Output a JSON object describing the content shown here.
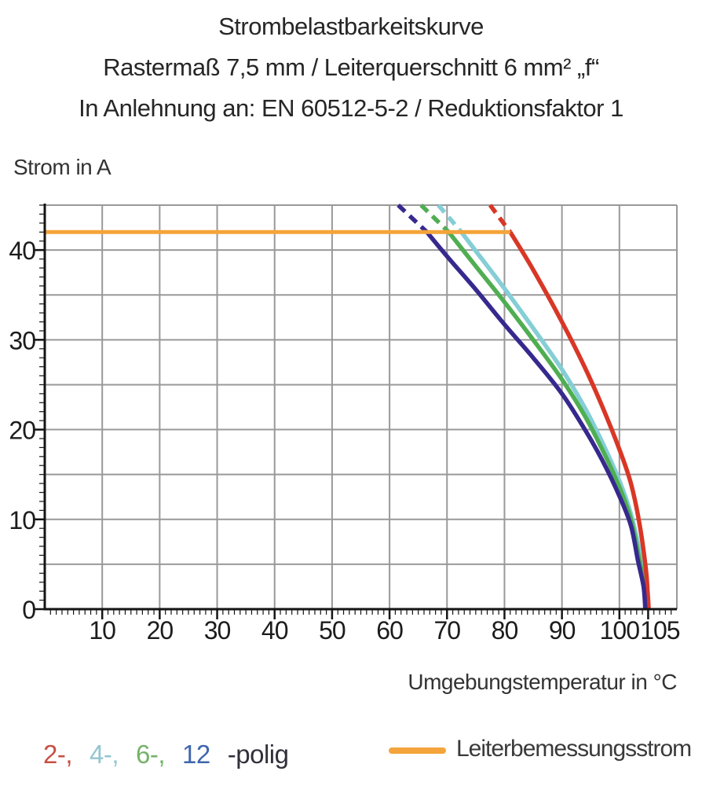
{
  "title": {
    "line1": "Strombelastbarkeitskurve",
    "line2": "Rastermaß 7,5 mm / Leiterquerschnitt 6 mm² „f“",
    "line3": "In Anlehnung an: EN 60512-5-2 / Reduktionsfaktor 1"
  },
  "chart_data": {
    "type": "line",
    "title": "Strombelastbarkeitskurve",
    "xlabel": "Umgebungstemperatur in °C",
    "ylabel": "Strom in A",
    "xlim": [
      0,
      110
    ],
    "ylim": [
      0,
      45
    ],
    "x_ticks_major": [
      10,
      20,
      30,
      40,
      50,
      60,
      70,
      80,
      90,
      100,
      105
    ],
    "x_tick_minor_step": 1,
    "y_ticks_major": [
      0,
      10,
      20,
      30,
      40
    ],
    "y_tick_minor_step": 1,
    "grid_x": [
      10,
      20,
      30,
      40,
      50,
      60,
      70,
      80,
      90,
      100,
      110
    ],
    "grid_y": [
      5,
      10,
      15,
      20,
      25,
      30,
      35,
      40,
      45
    ],
    "grid_color": "#999999",
    "spine_color": "#151515",
    "rated_current": {
      "label": "Leiterbemessungsstrom",
      "value_a": 42,
      "x_start": 0,
      "x_end": 81,
      "color": "#f4a43a"
    },
    "series": [
      {
        "name": "2-polig",
        "color": "#d93726",
        "dashed_points": [
          [
            77.5,
            45
          ],
          [
            81,
            42
          ]
        ],
        "points": [
          [
            81,
            42
          ],
          [
            85,
            37.8
          ],
          [
            90,
            32
          ],
          [
            94,
            26.9
          ],
          [
            97,
            22.6
          ],
          [
            100,
            17.8
          ],
          [
            102,
            14
          ],
          [
            103.5,
            9.5
          ],
          [
            104.6,
            4.5
          ],
          [
            104.9,
            2
          ],
          [
            105.1,
            0
          ]
        ]
      },
      {
        "name": "4-polig",
        "color": "#85ced6",
        "dashed_points": [
          [
            68.5,
            45
          ],
          [
            72.5,
            42
          ]
        ],
        "points": [
          [
            72.5,
            42
          ],
          [
            75,
            39.9
          ],
          [
            80,
            35.7
          ],
          [
            85,
            31.3
          ],
          [
            90,
            26.7
          ],
          [
            94,
            22.4
          ],
          [
            97,
            18.6
          ],
          [
            100,
            14.3
          ],
          [
            102,
            10.6
          ],
          [
            103.6,
            6.2
          ],
          [
            104.5,
            2.5
          ],
          [
            104.8,
            0
          ]
        ]
      },
      {
        "name": "6-polig",
        "color": "#4fae52",
        "dashed_points": [
          [
            65.5,
            45
          ],
          [
            70.3,
            42
          ]
        ],
        "points": [
          [
            70.3,
            42
          ],
          [
            75,
            38.2
          ],
          [
            80,
            34.2
          ],
          [
            85,
            30
          ],
          [
            90,
            25.6
          ],
          [
            94,
            21.5
          ],
          [
            97,
            17.8
          ],
          [
            100,
            13.6
          ],
          [
            102,
            10
          ],
          [
            103.4,
            5.8
          ],
          [
            104.4,
            2.5
          ],
          [
            104.7,
            0
          ]
        ]
      },
      {
        "name": "12-polig",
        "color": "#36298e",
        "dashed_points": [
          [
            61.5,
            45
          ],
          [
            66.5,
            42
          ]
        ],
        "points": [
          [
            66.5,
            42
          ],
          [
            70,
            39.3
          ],
          [
            75,
            35.6
          ],
          [
            80,
            31.7
          ],
          [
            85,
            28
          ],
          [
            90,
            24
          ],
          [
            94,
            20
          ],
          [
            97,
            16.6
          ],
          [
            100,
            12.6
          ],
          [
            102,
            9.3
          ],
          [
            103.2,
            5.5
          ],
          [
            104.2,
            2.5
          ],
          [
            104.5,
            0
          ]
        ]
      }
    ],
    "legend_position": "bottom"
  },
  "legend": {
    "poles": [
      {
        "text": "2-,",
        "color": "#c75044"
      },
      {
        "text": "4-,",
        "color": "#93c6d0"
      },
      {
        "text": "6-,",
        "color": "#74b368"
      },
      {
        "text": "12",
        "color": "#3f66ad"
      }
    ],
    "poles_suffix": "-polig",
    "rated_label": "Leiterbemessungsstrom"
  }
}
